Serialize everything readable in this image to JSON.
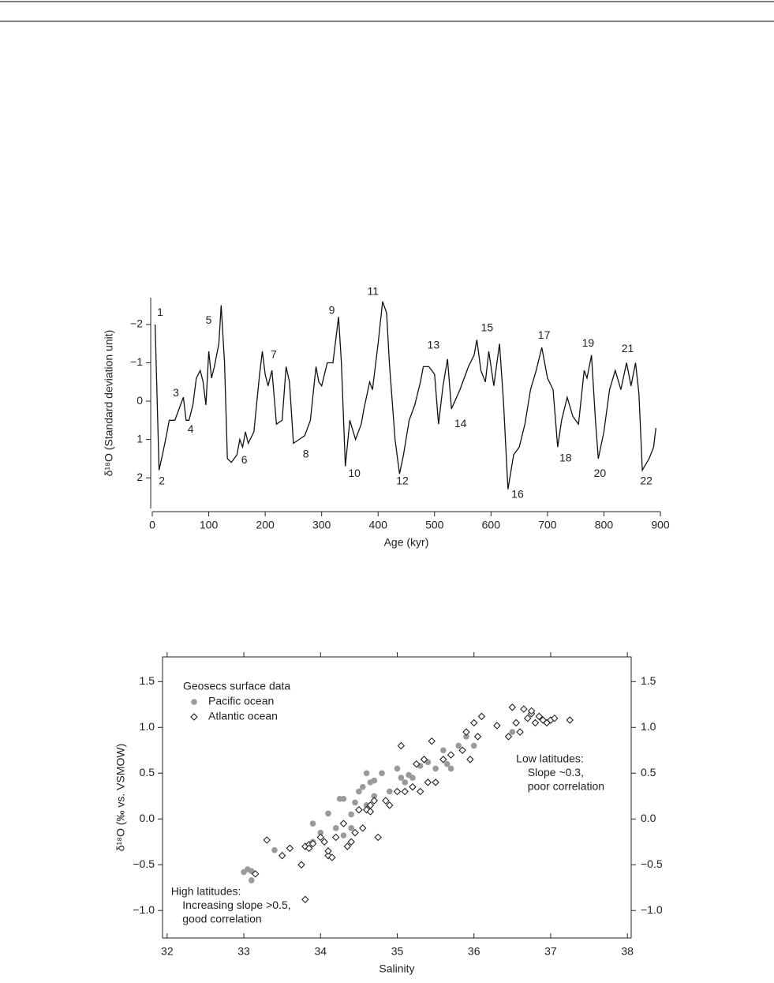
{
  "chart_data": [
    {
      "type": "line",
      "xlabel": "Age (kyr)",
      "ylabel": "δ¹⁸O (Standard deviation unit)",
      "xlim": [
        0,
        900
      ],
      "xticks": [
        0,
        100,
        200,
        300,
        400,
        500,
        600,
        700,
        800,
        900
      ],
      "ylim": [
        -2.7,
        2.8
      ],
      "yaxis_inverted": true,
      "yticks": [
        {
          "value": -2,
          "label": "−2"
        },
        {
          "value": -1,
          "label": "−1"
        },
        0,
        1,
        2
      ],
      "color": "#111111",
      "x": [
        5,
        12,
        18,
        25,
        30,
        40,
        50,
        55,
        60,
        65,
        72,
        78,
        85,
        90,
        95,
        100,
        105,
        110,
        118,
        122,
        128,
        133,
        140,
        150,
        155,
        160,
        165,
        170,
        180,
        190,
        195,
        200,
        205,
        212,
        220,
        230,
        237,
        243,
        250,
        260,
        270,
        280,
        290,
        295,
        300,
        310,
        320,
        330,
        335,
        342,
        350,
        360,
        370,
        375,
        385,
        390,
        400,
        408,
        415,
        420,
        430,
        438,
        445,
        455,
        465,
        475,
        480,
        490,
        500,
        507,
        515,
        523,
        530,
        545,
        560,
        570,
        575,
        582,
        590,
        596,
        605,
        615,
        622,
        630,
        640,
        650,
        660,
        670,
        680,
        690,
        700,
        710,
        718,
        725,
        735,
        745,
        755,
        765,
        770,
        778,
        785,
        790,
        800,
        810,
        820,
        830,
        840,
        848,
        856,
        862,
        868,
        880,
        888,
        892
      ],
      "values": [
        -2.0,
        1.8,
        1.4,
        0.9,
        0.5,
        0.5,
        0.1,
        -0.1,
        0.5,
        0.5,
        0.1,
        -0.6,
        -0.8,
        -0.5,
        0.1,
        -1.3,
        -0.6,
        -0.9,
        -1.5,
        -2.5,
        -1.0,
        1.5,
        1.6,
        1.4,
        1.0,
        1.2,
        0.8,
        1.1,
        0.8,
        -0.7,
        -1.3,
        -0.7,
        -0.4,
        -0.8,
        0.6,
        0.5,
        -0.9,
        -0.5,
        1.1,
        1.0,
        0.9,
        0.5,
        -0.9,
        -0.5,
        -0.4,
        -1.0,
        -1.0,
        -2.2,
        -1.0,
        1.7,
        0.5,
        1.0,
        0.6,
        0.2,
        -0.5,
        -0.3,
        -1.5,
        -2.6,
        -2.3,
        -1.0,
        1.0,
        1.9,
        1.4,
        0.5,
        0.1,
        -0.5,
        -0.9,
        -0.9,
        -0.7,
        0.6,
        -0.4,
        -1.1,
        0.2,
        -0.3,
        -0.9,
        -1.2,
        -1.6,
        -0.8,
        -0.5,
        -1.3,
        -0.4,
        -1.5,
        0.0,
        2.3,
        1.4,
        1.2,
        0.6,
        -0.3,
        -0.8,
        -1.4,
        -0.6,
        -0.3,
        1.2,
        0.5,
        -0.1,
        0.4,
        0.6,
        -0.8,
        -0.6,
        -1.2,
        0.5,
        1.5,
        0.8,
        -0.3,
        -0.8,
        -0.3,
        -1.0,
        -0.4,
        -1.0,
        -0.2,
        1.8,
        1.5,
        1.2,
        0.7
      ],
      "annotations": [
        {
          "text": "1",
          "x": 14,
          "y": -2.3
        },
        {
          "text": "2",
          "x": 17,
          "y": 2.1
        },
        {
          "text": "3",
          "x": 42,
          "y": -0.2
        },
        {
          "text": "4",
          "x": 68,
          "y": 0.75
        },
        {
          "text": "5",
          "x": 100,
          "y": -2.1
        },
        {
          "text": "6",
          "x": 163,
          "y": 1.55
        },
        {
          "text": "7",
          "x": 215,
          "y": -1.2
        },
        {
          "text": "8",
          "x": 272,
          "y": 1.4
        },
        {
          "text": "9",
          "x": 318,
          "y": -2.35
        },
        {
          "text": "10",
          "x": 358,
          "y": 1.9
        },
        {
          "text": "11",
          "x": 391,
          "y": -2.85
        },
        {
          "text": "12",
          "x": 443,
          "y": 2.1
        },
        {
          "text": "13",
          "x": 498,
          "y": -1.45
        },
        {
          "text": "14",
          "x": 546,
          "y": 0.6
        },
        {
          "text": "15",
          "x": 593,
          "y": -1.9
        },
        {
          "text": "16",
          "x": 647,
          "y": 2.45
        },
        {
          "text": "17",
          "x": 694,
          "y": -1.7
        },
        {
          "text": "18",
          "x": 732,
          "y": 1.5
        },
        {
          "text": "19",
          "x": 772,
          "y": -1.5
        },
        {
          "text": "20",
          "x": 793,
          "y": 1.9
        },
        {
          "text": "21",
          "x": 842,
          "y": -1.35
        },
        {
          "text": "22",
          "x": 875,
          "y": 2.1
        }
      ]
    },
    {
      "type": "scatter",
      "xlabel": "Salinity",
      "ylabel": "δ¹⁸O (‰ vs. VSMOW)",
      "xlim": [
        31.94,
        38.05
      ],
      "xticks": [
        32,
        33,
        34,
        35,
        36,
        37,
        38
      ],
      "ylim": [
        -1.3,
        1.77
      ],
      "yticks": [
        {
          "value": -1.0,
          "label": "−1.0"
        },
        {
          "value": -0.5,
          "label": "−0.5"
        },
        {
          "value": 0.0,
          "label": "0.0"
        },
        0.5,
        {
          "value": 1.0,
          "label": "1.0"
        },
        1.5
      ],
      "legend_title": "Geosecs surface data",
      "legend": "upper left",
      "series": [
        {
          "name": "Pacific ocean",
          "color": "#9a9a9a",
          "marker": "circle",
          "x": [
            33.0,
            33.05,
            33.1,
            33.1,
            33.4,
            33.9,
            34.0,
            34.1,
            34.2,
            34.25,
            34.3,
            34.4,
            34.4,
            34.45,
            34.5,
            34.55,
            34.6,
            34.65,
            34.7,
            34.8,
            34.9,
            35.0,
            35.05,
            35.1,
            35.15,
            35.2,
            35.3,
            35.4,
            35.5,
            35.6,
            35.65,
            35.7,
            35.8,
            35.9,
            36.0,
            36.5,
            34.3,
            34.6,
            33.9,
            34.7
          ],
          "values": [
            -0.58,
            -0.55,
            -0.57,
            -0.67,
            -0.34,
            -0.05,
            -0.15,
            0.06,
            -0.1,
            0.22,
            0.22,
            -0.1,
            0.05,
            0.18,
            0.3,
            0.35,
            0.5,
            0.4,
            0.25,
            0.5,
            0.3,
            0.55,
            0.45,
            0.4,
            0.48,
            0.45,
            0.58,
            0.62,
            0.55,
            0.75,
            0.6,
            0.55,
            0.8,
            0.9,
            0.8,
            0.95,
            -0.18,
            0.15,
            -0.25,
            0.42
          ]
        },
        {
          "name": "Atlantic ocean",
          "color": "#111111",
          "marker": "diamond",
          "x": [
            33.3,
            33.5,
            33.6,
            33.75,
            33.8,
            33.85,
            33.9,
            34.0,
            34.05,
            34.1,
            34.1,
            34.2,
            34.3,
            34.35,
            34.4,
            34.45,
            34.5,
            34.55,
            34.6,
            34.65,
            34.7,
            34.75,
            34.85,
            34.9,
            35.0,
            35.05,
            35.1,
            35.2,
            35.25,
            35.3,
            35.4,
            35.45,
            35.5,
            35.6,
            35.7,
            35.85,
            35.9,
            35.95,
            36.0,
            36.05,
            36.1,
            36.3,
            36.45,
            36.5,
            36.55,
            36.6,
            36.65,
            36.7,
            36.75,
            36.8,
            36.85,
            36.9,
            37.0,
            37.05,
            37.25,
            33.8,
            33.15,
            33.85,
            34.65,
            34.15,
            35.35,
            36.95,
            36.75
          ],
          "values": [
            -0.23,
            -0.4,
            -0.32,
            -0.5,
            -0.3,
            -0.28,
            -0.27,
            -0.2,
            -0.25,
            -0.4,
            -0.35,
            -0.2,
            -0.05,
            -0.3,
            -0.25,
            -0.15,
            0.1,
            -0.1,
            0.1,
            0.15,
            0.2,
            -0.2,
            0.2,
            0.15,
            0.3,
            0.8,
            0.3,
            0.35,
            0.6,
            0.3,
            0.4,
            0.85,
            0.4,
            0.65,
            0.7,
            0.75,
            0.95,
            0.65,
            1.05,
            0.9,
            1.12,
            1.02,
            0.9,
            1.22,
            1.05,
            0.95,
            1.2,
            1.1,
            1.15,
            1.05,
            1.12,
            1.08,
            1.08,
            1.1,
            1.08,
            -0.88,
            -0.6,
            -0.32,
            0.08,
            -0.42,
            0.65,
            1.05,
            1.18
          ]
        }
      ],
      "annotations": [
        {
          "text": "Low latitudes:",
          "x": 36.55,
          "y": 0.65
        },
        {
          "text": "Slope ~0.3,",
          "x": 36.7,
          "y": 0.5
        },
        {
          "text": "poor correlation",
          "x": 36.7,
          "y": 0.35
        },
        {
          "text": "High latitudes:",
          "x": 32.05,
          "y": -0.8
        },
        {
          "text": "Increasing slope >0.5,",
          "x": 32.2,
          "y": -0.95
        },
        {
          "text": "good correlation",
          "x": 32.2,
          "y": -1.1
        }
      ]
    }
  ]
}
